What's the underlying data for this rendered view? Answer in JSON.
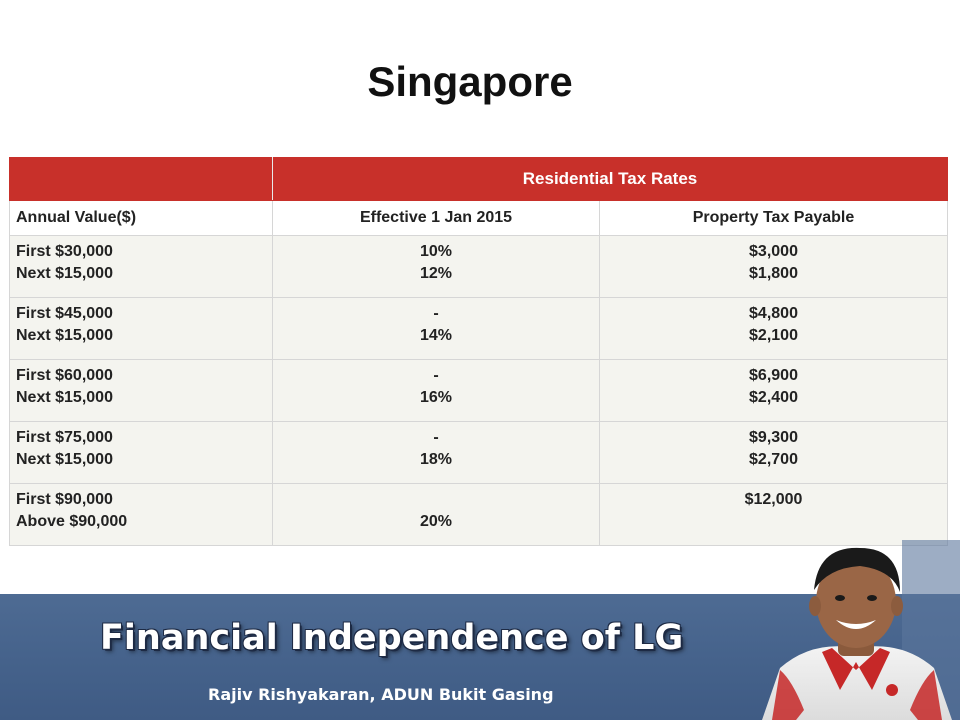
{
  "slide": {
    "title": "Singapore"
  },
  "table": {
    "band_label": "Residential Tax Rates",
    "headers": [
      "Annual Value($)",
      "Effective 1 Jan 2015",
      "Property Tax Payable"
    ],
    "rows": [
      {
        "annual_value": [
          "First $30,000",
          "Next $15,000"
        ],
        "rate": [
          "10%",
          "12%"
        ],
        "payable": [
          "$3,000",
          "$1,800"
        ]
      },
      {
        "annual_value": [
          "First $45,000",
          "Next $15,000"
        ],
        "rate": [
          "-",
          "14%"
        ],
        "payable": [
          "$4,800",
          "$2,100"
        ]
      },
      {
        "annual_value": [
          "First $60,000",
          "Next $15,000"
        ],
        "rate": [
          "-",
          "16%"
        ],
        "payable": [
          "$6,900",
          "$2,400"
        ]
      },
      {
        "annual_value": [
          "First $75,000",
          "Next $15,000"
        ],
        "rate": [
          "-",
          "18%"
        ],
        "payable": [
          "$9,300",
          "$2,700"
        ]
      },
      {
        "annual_value": [
          "First $90,000",
          "Above $90,000"
        ],
        "rate": [
          "",
          "20%"
        ],
        "payable": [
          "$12,000",
          ""
        ]
      }
    ]
  },
  "footer": {
    "title": "Financial Independence of LG",
    "subtitle": "Rajiv Rishyakaran,  ADUN Bukit Gasing",
    "portrait_icon": "person-portrait-icon"
  },
  "colors": {
    "table_band": "#c8302a",
    "table_row_bg": "#f4f4ef",
    "footer_bar": "#46638c",
    "footer_text": "#ffffff"
  }
}
